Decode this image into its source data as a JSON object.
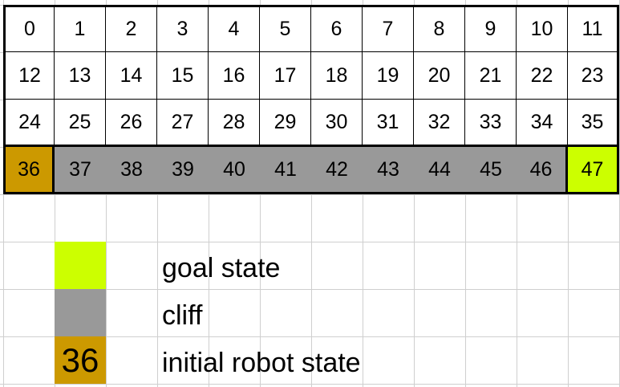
{
  "grid": {
    "rows": 4,
    "cols": 12,
    "labels": [
      "0",
      "1",
      "2",
      "3",
      "4",
      "5",
      "6",
      "7",
      "8",
      "9",
      "10",
      "11",
      "12",
      "13",
      "14",
      "15",
      "16",
      "17",
      "18",
      "19",
      "20",
      "21",
      "22",
      "23",
      "24",
      "25",
      "26",
      "27",
      "28",
      "29",
      "30",
      "31",
      "32",
      "33",
      "34",
      "35",
      "36",
      "37",
      "38",
      "39",
      "40",
      "41",
      "42",
      "43",
      "44",
      "45",
      "46",
      "47"
    ],
    "start_state": 36,
    "goal_state": 47,
    "cliff_states": [
      37,
      38,
      39,
      40,
      41,
      42,
      43,
      44,
      45,
      46
    ]
  },
  "colors": {
    "goal": "#ccff00",
    "cliff": "#999999",
    "start": "#cc9900",
    "cell": "#ffffff"
  },
  "legend": {
    "goal_label": "goal state",
    "cliff_label": "cliff",
    "start_label": "initial robot state",
    "start_swatch_text": "36"
  }
}
